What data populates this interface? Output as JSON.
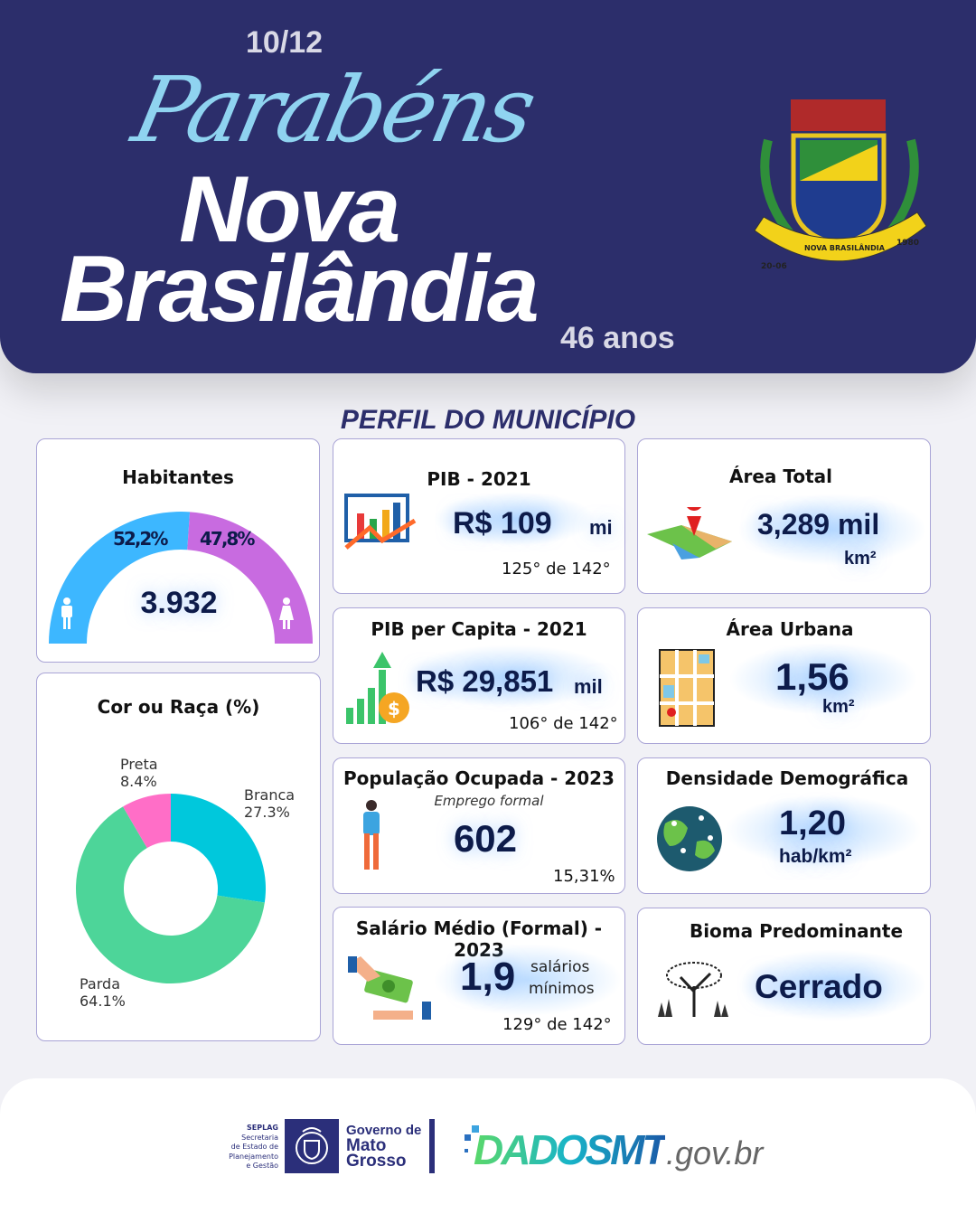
{
  "header": {
    "script_title": "Parabéns",
    "date": "10/12",
    "city_line1": "Nova",
    "city_line2": "Brasilândia",
    "anniversary": "46 anos",
    "crest_text": "NOVA BRASILÂNDIA",
    "crest_date": "20-06",
    "crest_year": "1980"
  },
  "section_title": "PERFIL DO MUNICÍPIO",
  "habitantes": {
    "title": "Habitantes",
    "total": "3.932",
    "male_pct_label": "52,2%",
    "female_pct_label": "47,8%",
    "male_pct": 52.2,
    "female_pct": 47.8,
    "colors": {
      "male": "#3db7ff",
      "female": "#c86be0"
    }
  },
  "raca": {
    "title": "Cor ou Raça (%)",
    "slices": [
      {
        "name": "Branca",
        "value": 27.3,
        "label": "27.3%",
        "color": "#00c8dc"
      },
      {
        "name": "Parda",
        "value": 64.1,
        "label": "64.1%",
        "color": "#4dd599"
      },
      {
        "name": "Preta",
        "value": 8.4,
        "label": "8.4%",
        "color": "#ff6ec7"
      }
    ]
  },
  "pib": {
    "title": "PIB - 2021",
    "value": "R$ 109",
    "unit": "mi",
    "rank": "125°  de 142°"
  },
  "pib_pc": {
    "title": "PIB per Capita - 2021",
    "value": "R$ 29,851",
    "unit": "mil",
    "rank": "106° de 142°"
  },
  "pop_ocupada": {
    "title": "População  Ocupada - 2023",
    "subtitle": "Emprego formal",
    "value": "602",
    "pct": "15,31%"
  },
  "salario": {
    "title": "Salário Médio (Formal) - 2023",
    "value": "1,9",
    "unit1": "salários",
    "unit2": "mínimos",
    "rank": "129° de 142°"
  },
  "area_total": {
    "title": "Área Total",
    "value": "3,289 mil",
    "unit": "km²"
  },
  "area_urbana": {
    "title": "Área Urbana",
    "value": "1,56",
    "unit": "km²"
  },
  "densidade": {
    "title": "Densidade Demográfica",
    "value": "1,20",
    "unit": "hab/km²"
  },
  "bioma": {
    "title": "Bioma Predominante",
    "value": "Cerrado"
  },
  "footer": {
    "seplag": [
      "SEPLAG",
      "Secretaria",
      "de Estado de",
      "Planejamento",
      "e Gestão"
    ],
    "gov": [
      "Governo de",
      "Mato",
      "Grosso"
    ],
    "dados": "DADOSMT",
    "gov_br": ".gov.br"
  }
}
